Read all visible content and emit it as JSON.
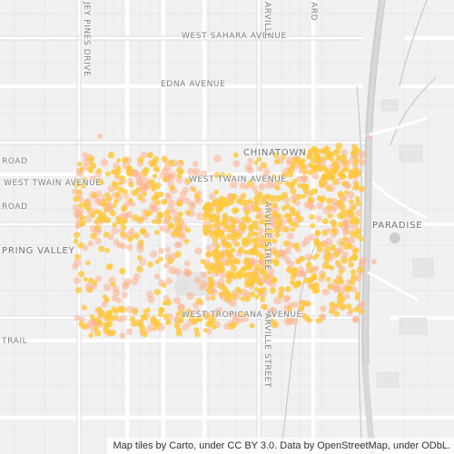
{
  "map": {
    "road_labels": {
      "west_sahara": "WEST SAHARA AVENUE",
      "edna": "EDNA AVENUE",
      "west_twain_left": "WEST TWAIN AVENUE",
      "west_twain_center": "WEST TWAIN AVENUE",
      "west_tropicana": "WEST TROPICANA AVENUE",
      "road_left_1": "ROAD",
      "road_left_2": "ROAD",
      "trail": "TRAIL",
      "jey_pines": "JEY PINES DRIVE",
      "arville_top": "ARVILLE",
      "arville_middle": "ARVILLE STREE",
      "arville_bottom": "ARVILLE STREET",
      "top_ard": "ARD"
    },
    "place_labels": {
      "chinatown": "CHINATOWN",
      "paradise": "PARADISE",
      "spring_valley": "PRING VALLEY"
    },
    "attribution": "Map tiles by Carto, under CC BY 3.0. Data by OpenStreetMap, under ODbL.",
    "colors": {
      "background": "#f2f2f2",
      "road": "#ffffff",
      "road_casing": "#e2e2e2",
      "highway": "#dcdcdc",
      "dot_dense": "#ffc83a",
      "dot_sparse": "#ffb08a"
    }
  }
}
